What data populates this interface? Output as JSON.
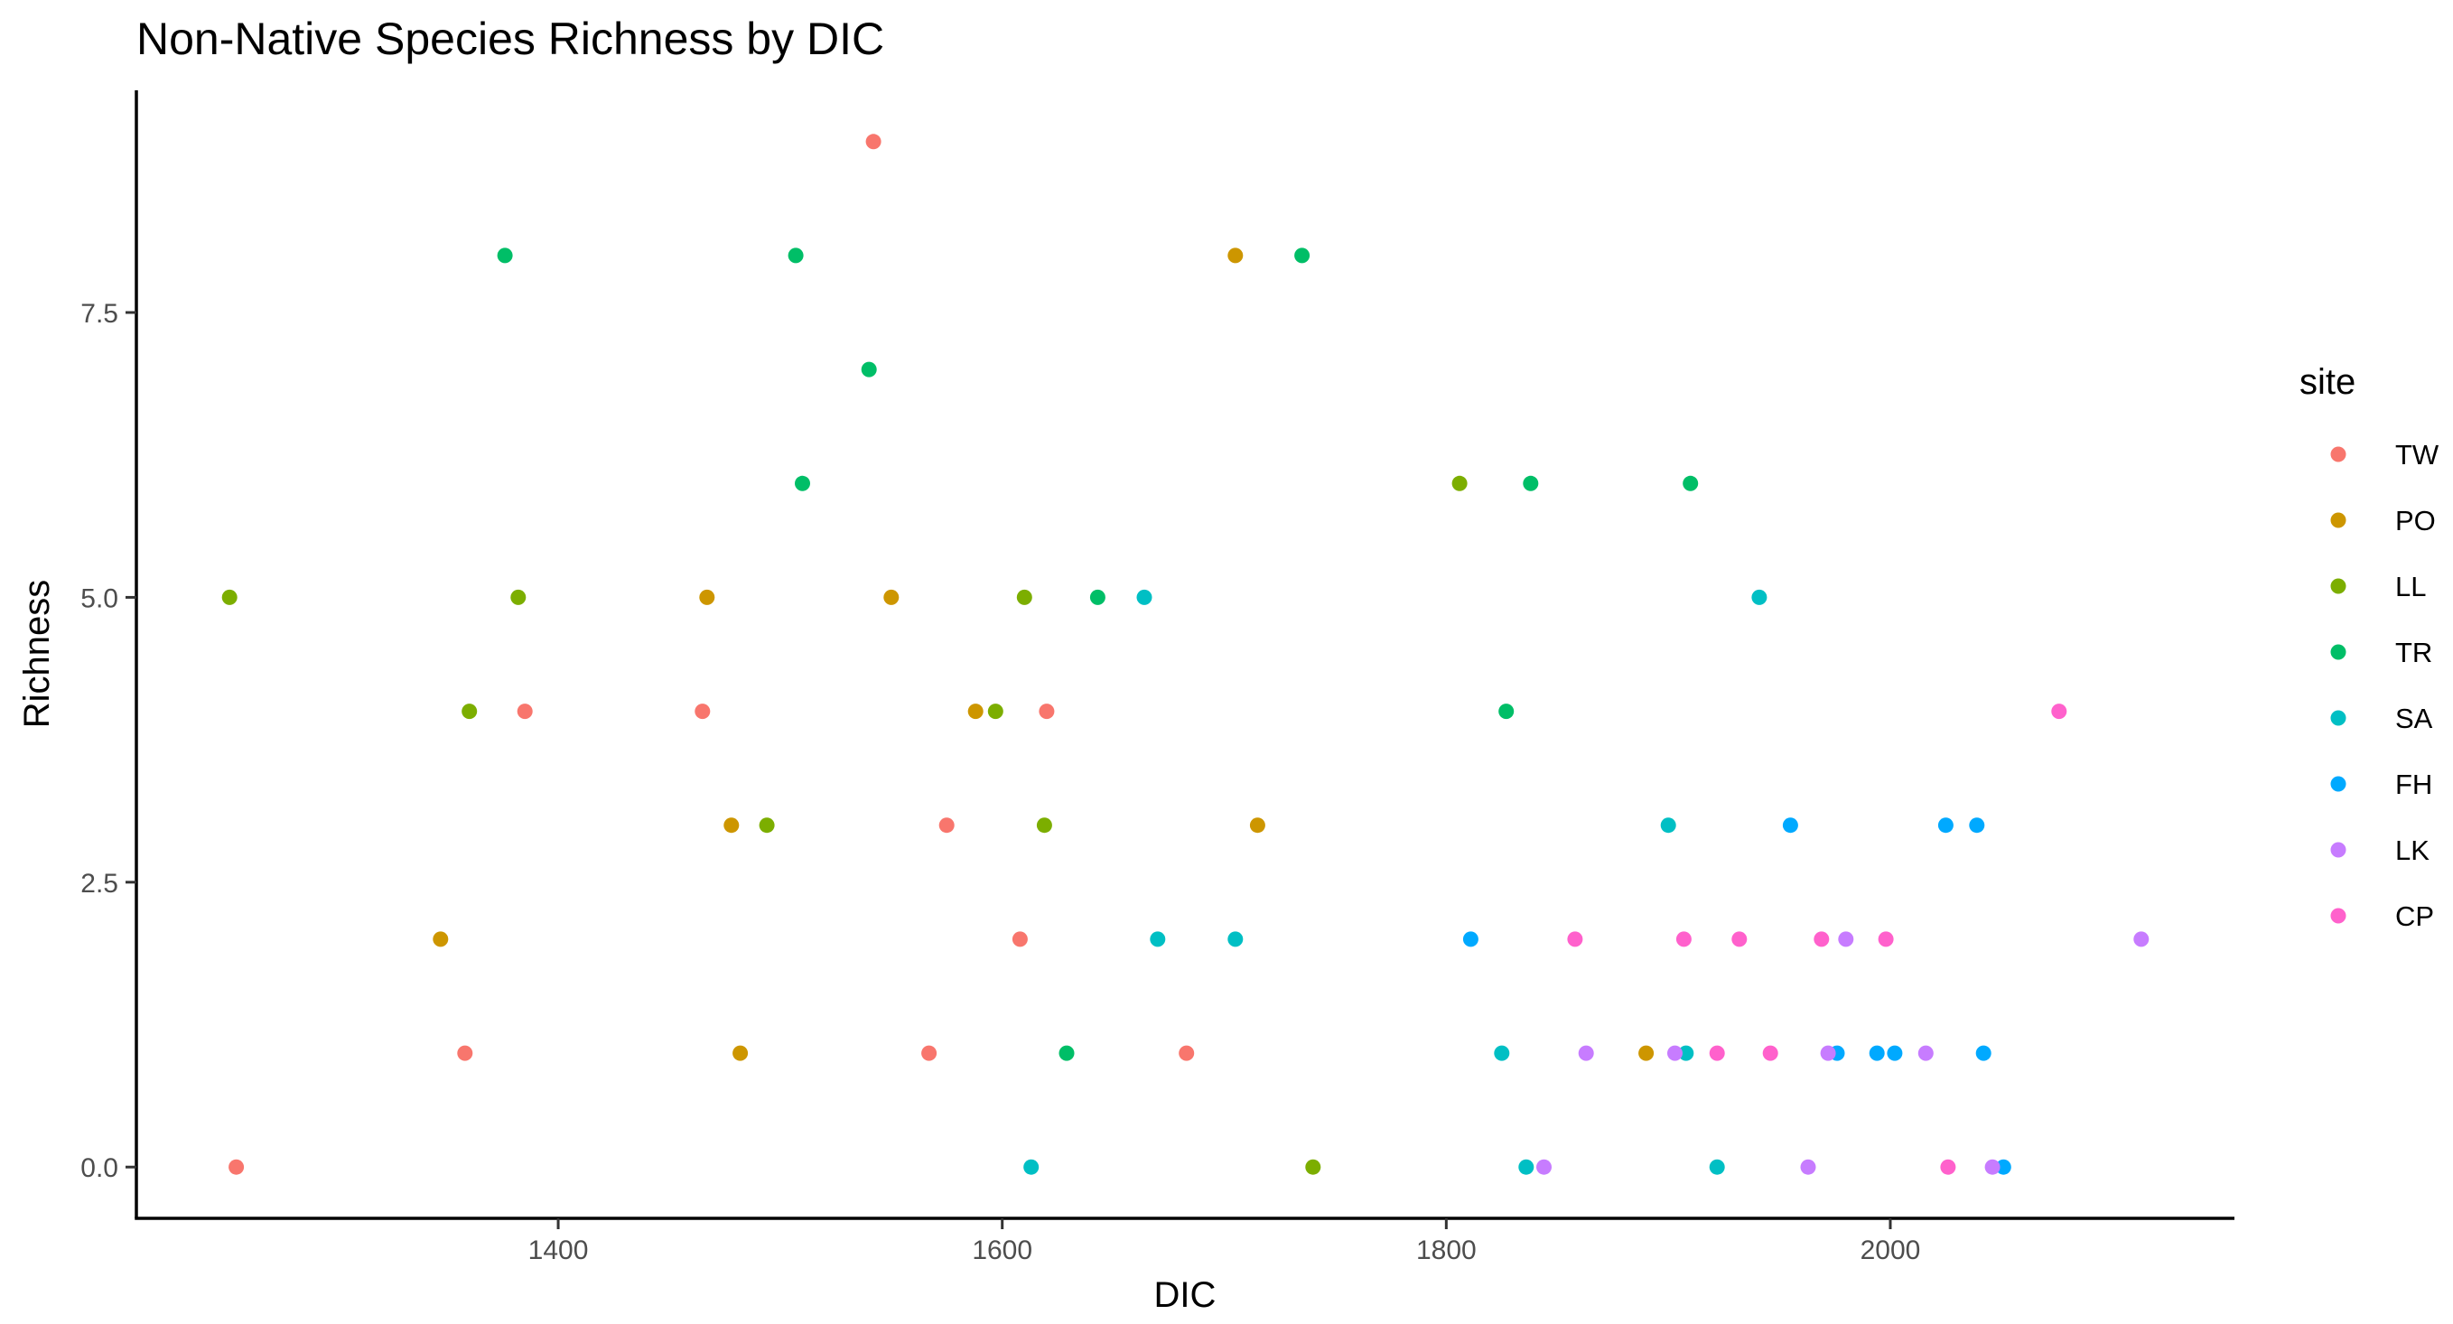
{
  "chart_data": {
    "type": "scatter",
    "title": "Non-Native Species Richness by DIC",
    "xlabel": "DIC",
    "ylabel": "Richness",
    "xlim": [
      1210,
      2155
    ],
    "ylim": [
      -0.45,
      9.45
    ],
    "x_ticks": [
      1400,
      1600,
      1800,
      2000
    ],
    "x_tick_labels": [
      "1400",
      "1600",
      "1800",
      "2000"
    ],
    "y_ticks": [
      0,
      2.5,
      5,
      7.5
    ],
    "y_tick_labels": [
      "0.0",
      "2.5",
      "5.0",
      "7.5"
    ],
    "grid": false,
    "legend": {
      "title": "site",
      "position": "right"
    },
    "series": [
      {
        "name": "TW",
        "color": "#F8766D",
        "points": [
          [
            1255,
            0
          ],
          [
            1358,
            1
          ],
          [
            1385,
            4
          ],
          [
            1465,
            4
          ],
          [
            1542,
            9
          ],
          [
            1567,
            1
          ],
          [
            1575,
            3
          ],
          [
            1608,
            2
          ],
          [
            1620,
            4
          ],
          [
            1683,
            1
          ]
        ]
      },
      {
        "name": "PO",
        "color": "#CD9600",
        "points": [
          [
            1347,
            2
          ],
          [
            1467,
            5
          ],
          [
            1478,
            3
          ],
          [
            1482,
            1
          ],
          [
            1550,
            5
          ],
          [
            1588,
            4
          ],
          [
            1705,
            8
          ],
          [
            1715,
            3
          ],
          [
            1890,
            1
          ]
        ]
      },
      {
        "name": "LL",
        "color": "#7CAE00",
        "points": [
          [
            1252,
            5
          ],
          [
            1360,
            4
          ],
          [
            1382,
            5
          ],
          [
            1494,
            3
          ],
          [
            1597,
            4
          ],
          [
            1610,
            5
          ],
          [
            1619,
            3
          ],
          [
            1740,
            0
          ],
          [
            1806,
            6
          ]
        ]
      },
      {
        "name": "TR",
        "color": "#00BE67",
        "points": [
          [
            1376,
            8
          ],
          [
            1507,
            8
          ],
          [
            1510,
            6
          ],
          [
            1540,
            7
          ],
          [
            1629,
            1
          ],
          [
            1643,
            5
          ],
          [
            1735,
            8
          ],
          [
            1827,
            4
          ],
          [
            1838,
            6
          ],
          [
            1910,
            6
          ]
        ]
      },
      {
        "name": "SA",
        "color": "#00BFC4",
        "points": [
          [
            1613,
            0
          ],
          [
            1664,
            5
          ],
          [
            1670,
            2
          ],
          [
            1705,
            2
          ],
          [
            1825,
            1
          ],
          [
            1836,
            0
          ],
          [
            1900,
            3
          ],
          [
            1908,
            1
          ],
          [
            1922,
            0
          ],
          [
            1941,
            5
          ]
        ]
      },
      {
        "name": "FH",
        "color": "#00A9FF",
        "points": [
          [
            1811,
            2
          ],
          [
            1955,
            3
          ],
          [
            1976,
            1
          ],
          [
            1994,
            1
          ],
          [
            2002,
            1
          ],
          [
            2025,
            3
          ],
          [
            2039,
            3
          ],
          [
            2042,
            1
          ],
          [
            2051,
            0
          ]
        ]
      },
      {
        "name": "LK",
        "color": "#C77CFF",
        "points": [
          [
            1844,
            0
          ],
          [
            1863,
            1
          ],
          [
            1903,
            1
          ],
          [
            1963,
            0
          ],
          [
            1972,
            1
          ],
          [
            1980,
            2
          ],
          [
            2016,
            1
          ],
          [
            2046,
            0
          ],
          [
            2113,
            2
          ]
        ]
      },
      {
        "name": "CP",
        "color": "#FF61CC",
        "points": [
          [
            1858,
            2
          ],
          [
            1907,
            2
          ],
          [
            1922,
            1
          ],
          [
            1932,
            2
          ],
          [
            1946,
            1
          ],
          [
            1969,
            2
          ],
          [
            1998,
            2
          ],
          [
            2026,
            0
          ],
          [
            2076,
            4
          ]
        ]
      }
    ]
  }
}
